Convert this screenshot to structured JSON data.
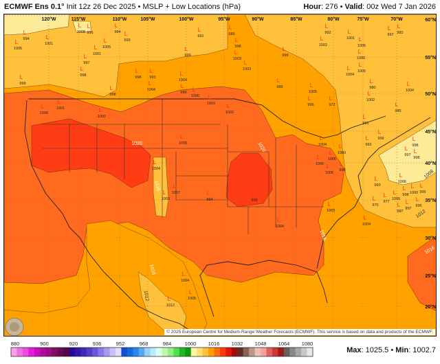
{
  "header": {
    "model": "ECMWF Ens 0.1°",
    "init": "Init 12z 26 Dec 2025",
    "product": "MSLP + Low Locations (hPa)",
    "hour_label": "Hour",
    "hour": "276",
    "valid_label": "Valid",
    "valid": "00z Wed 7 Jan 2026"
  },
  "map": {
    "longitudes": [
      "120°W",
      "115°W",
      "110°W",
      "105°W",
      "100°W",
      "95°W",
      "90°W",
      "85°W",
      "80°W",
      "75°W",
      "70°W"
    ],
    "latitudes": [
      "60°N",
      "55°N",
      "50°N",
      "45°N",
      "40°N",
      "35°N",
      "30°N",
      "25°N",
      "20°N"
    ],
    "contour_labels": [
      "1020",
      "1020",
      "1016",
      "1016",
      "1016",
      "1016",
      "1012",
      "1008",
      "1012"
    ],
    "low_marker": "L",
    "low_pressures": [
      "994",
      "1005",
      "1001",
      "996",
      "1008",
      "984",
      "993",
      "1005",
      "1001",
      "997",
      "998",
      "999",
      "998",
      "998",
      "993",
      "1004",
      "991",
      "999",
      "1004",
      "990",
      "1000",
      "1003",
      "1006",
      "1001",
      "1002",
      "1006",
      "989",
      "998",
      "1003",
      "1003",
      "999",
      "985",
      "1005",
      "996",
      "972",
      "992",
      "1002",
      "1001",
      "1005",
      "1000",
      "1005",
      "1004",
      "980",
      "1002",
      "997",
      "982",
      "1004",
      "985",
      "1002",
      "991",
      "999",
      "992",
      "1004",
      "1000",
      "1005",
      "1005",
      "1006",
      "990",
      "993",
      "1006",
      "998",
      "1000",
      "995",
      "970",
      "977",
      "1005",
      "987",
      "997",
      "996",
      "1004",
      "1003",
      "1004",
      "999",
      "998",
      "997",
      "998",
      "1004",
      "1003",
      "1007",
      "994",
      "1004",
      "1012",
      "1005"
    ],
    "copyright": "© 2025 European Centre for Medium-Range Weather Forecasts (ECMWF). This service is based on data and products of the ECMWF.",
    "logo": "WeatherBELL",
    "colors": {
      "yellow": "#FDEB98",
      "pale_orange": "#FFC03C",
      "orange": "#FFA200",
      "red_orange": "#FF6A1E",
      "red": "#FF3C14"
    }
  },
  "colorbar": {
    "ticks": [
      "880",
      "900",
      "920",
      "936",
      "952",
      "968",
      "984",
      "1000",
      "1016",
      "1032",
      "1048",
      "1064",
      "1080"
    ],
    "colors": [
      "#F7A0E8",
      "#F070E0",
      "#EC4CDC",
      "#E81CD8",
      "#C810B8",
      "#B00C9C",
      "#981080",
      "#800C68",
      "#680C50",
      "#580840",
      "#2A0898",
      "#3018A8",
      "#4028B8",
      "#5040C8",
      "#6858D8",
      "#8878E8",
      "#A898F0",
      "#C8C0F8",
      "#E0E0F8",
      "#1050D0",
      "#1868E0",
      "#2888F0",
      "#58A8F0",
      "#98D0F8",
      "#B8F0F8",
      "#E0FFF8",
      "#C0F8B0",
      "#90F080",
      "#50E050",
      "#20B820",
      "#109810",
      "#FFF8A8",
      "#FFE070",
      "#FFC040",
      "#FFA000",
      "#FF6A10",
      "#FF3810",
      "#E01808",
      "#A01008",
      "#603028",
      "#906058",
      "#B89888",
      "#E8C0B8",
      "#F8A098",
      "#E06060",
      "#C83838",
      "#A01818",
      "#606060",
      "#888888",
      "#A8A8A8",
      "#C8C8C8",
      "#E8E8E8"
    ]
  },
  "footer": {
    "max_label": "Max",
    "max": "1025.5",
    "min_label": "Min",
    "min": "1002.7"
  }
}
